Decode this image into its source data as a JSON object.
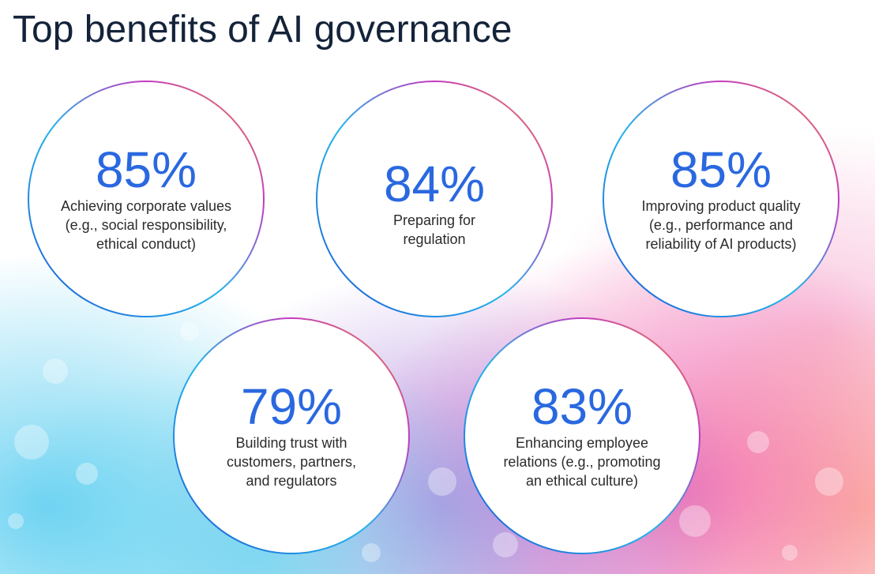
{
  "header": {
    "title": "Top benefits of AI governance"
  },
  "items": [
    {
      "value": "85%",
      "lines": [
        "Achieving corporate values",
        "(e.g., social responsibility,",
        "ethical conduct)"
      ]
    },
    {
      "value": "84%",
      "lines": [
        "Preparing for",
        "regulation"
      ]
    },
    {
      "value": "85%",
      "lines": [
        "Improving product quality",
        "(e.g., performance and",
        "reliability of AI products)"
      ]
    },
    {
      "value": "79%",
      "lines": [
        "Building trust with",
        "customers, partners,",
        "and regulators"
      ]
    },
    {
      "value": "83%",
      "lines": [
        "Enhancing employee",
        "relations (e.g., promoting",
        "an ethical culture)"
      ]
    }
  ]
}
